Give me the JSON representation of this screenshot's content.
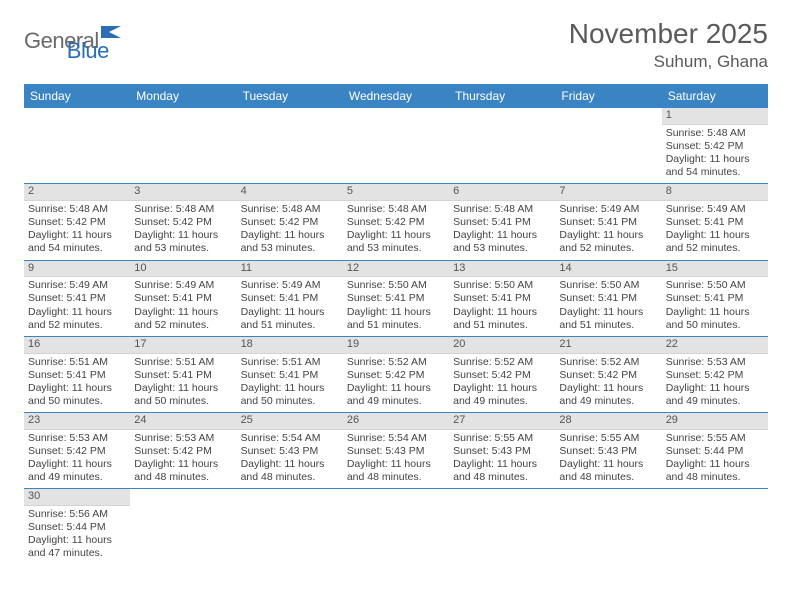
{
  "logo": {
    "text1": "General",
    "text2": "Blue"
  },
  "title": "November 2025",
  "location": "Suhum, Ghana",
  "colors": {
    "header_bg": "#3b84c4",
    "header_text": "#ffffff",
    "daynum_bg": "#e3e3e3",
    "week_border": "#3b84c4",
    "title_color": "#5a5a5a",
    "logo_gray": "#6a6a6a",
    "logo_blue": "#2a6fb5"
  },
  "weekdays": [
    "Sunday",
    "Monday",
    "Tuesday",
    "Wednesday",
    "Thursday",
    "Friday",
    "Saturday"
  ],
  "weeks": [
    [
      null,
      null,
      null,
      null,
      null,
      null,
      {
        "d": "1",
        "sr": "Sunrise: 5:48 AM",
        "ss": "Sunset: 5:42 PM",
        "dl1": "Daylight: 11 hours",
        "dl2": "and 54 minutes."
      }
    ],
    [
      {
        "d": "2",
        "sr": "Sunrise: 5:48 AM",
        "ss": "Sunset: 5:42 PM",
        "dl1": "Daylight: 11 hours",
        "dl2": "and 54 minutes."
      },
      {
        "d": "3",
        "sr": "Sunrise: 5:48 AM",
        "ss": "Sunset: 5:42 PM",
        "dl1": "Daylight: 11 hours",
        "dl2": "and 53 minutes."
      },
      {
        "d": "4",
        "sr": "Sunrise: 5:48 AM",
        "ss": "Sunset: 5:42 PM",
        "dl1": "Daylight: 11 hours",
        "dl2": "and 53 minutes."
      },
      {
        "d": "5",
        "sr": "Sunrise: 5:48 AM",
        "ss": "Sunset: 5:42 PM",
        "dl1": "Daylight: 11 hours",
        "dl2": "and 53 minutes."
      },
      {
        "d": "6",
        "sr": "Sunrise: 5:48 AM",
        "ss": "Sunset: 5:41 PM",
        "dl1": "Daylight: 11 hours",
        "dl2": "and 53 minutes."
      },
      {
        "d": "7",
        "sr": "Sunrise: 5:49 AM",
        "ss": "Sunset: 5:41 PM",
        "dl1": "Daylight: 11 hours",
        "dl2": "and 52 minutes."
      },
      {
        "d": "8",
        "sr": "Sunrise: 5:49 AM",
        "ss": "Sunset: 5:41 PM",
        "dl1": "Daylight: 11 hours",
        "dl2": "and 52 minutes."
      }
    ],
    [
      {
        "d": "9",
        "sr": "Sunrise: 5:49 AM",
        "ss": "Sunset: 5:41 PM",
        "dl1": "Daylight: 11 hours",
        "dl2": "and 52 minutes."
      },
      {
        "d": "10",
        "sr": "Sunrise: 5:49 AM",
        "ss": "Sunset: 5:41 PM",
        "dl1": "Daylight: 11 hours",
        "dl2": "and 52 minutes."
      },
      {
        "d": "11",
        "sr": "Sunrise: 5:49 AM",
        "ss": "Sunset: 5:41 PM",
        "dl1": "Daylight: 11 hours",
        "dl2": "and 51 minutes."
      },
      {
        "d": "12",
        "sr": "Sunrise: 5:50 AM",
        "ss": "Sunset: 5:41 PM",
        "dl1": "Daylight: 11 hours",
        "dl2": "and 51 minutes."
      },
      {
        "d": "13",
        "sr": "Sunrise: 5:50 AM",
        "ss": "Sunset: 5:41 PM",
        "dl1": "Daylight: 11 hours",
        "dl2": "and 51 minutes."
      },
      {
        "d": "14",
        "sr": "Sunrise: 5:50 AM",
        "ss": "Sunset: 5:41 PM",
        "dl1": "Daylight: 11 hours",
        "dl2": "and 51 minutes."
      },
      {
        "d": "15",
        "sr": "Sunrise: 5:50 AM",
        "ss": "Sunset: 5:41 PM",
        "dl1": "Daylight: 11 hours",
        "dl2": "and 50 minutes."
      }
    ],
    [
      {
        "d": "16",
        "sr": "Sunrise: 5:51 AM",
        "ss": "Sunset: 5:41 PM",
        "dl1": "Daylight: 11 hours",
        "dl2": "and 50 minutes."
      },
      {
        "d": "17",
        "sr": "Sunrise: 5:51 AM",
        "ss": "Sunset: 5:41 PM",
        "dl1": "Daylight: 11 hours",
        "dl2": "and 50 minutes."
      },
      {
        "d": "18",
        "sr": "Sunrise: 5:51 AM",
        "ss": "Sunset: 5:41 PM",
        "dl1": "Daylight: 11 hours",
        "dl2": "and 50 minutes."
      },
      {
        "d": "19",
        "sr": "Sunrise: 5:52 AM",
        "ss": "Sunset: 5:42 PM",
        "dl1": "Daylight: 11 hours",
        "dl2": "and 49 minutes."
      },
      {
        "d": "20",
        "sr": "Sunrise: 5:52 AM",
        "ss": "Sunset: 5:42 PM",
        "dl1": "Daylight: 11 hours",
        "dl2": "and 49 minutes."
      },
      {
        "d": "21",
        "sr": "Sunrise: 5:52 AM",
        "ss": "Sunset: 5:42 PM",
        "dl1": "Daylight: 11 hours",
        "dl2": "and 49 minutes."
      },
      {
        "d": "22",
        "sr": "Sunrise: 5:53 AM",
        "ss": "Sunset: 5:42 PM",
        "dl1": "Daylight: 11 hours",
        "dl2": "and 49 minutes."
      }
    ],
    [
      {
        "d": "23",
        "sr": "Sunrise: 5:53 AM",
        "ss": "Sunset: 5:42 PM",
        "dl1": "Daylight: 11 hours",
        "dl2": "and 49 minutes."
      },
      {
        "d": "24",
        "sr": "Sunrise: 5:53 AM",
        "ss": "Sunset: 5:42 PM",
        "dl1": "Daylight: 11 hours",
        "dl2": "and 48 minutes."
      },
      {
        "d": "25",
        "sr": "Sunrise: 5:54 AM",
        "ss": "Sunset: 5:43 PM",
        "dl1": "Daylight: 11 hours",
        "dl2": "and 48 minutes."
      },
      {
        "d": "26",
        "sr": "Sunrise: 5:54 AM",
        "ss": "Sunset: 5:43 PM",
        "dl1": "Daylight: 11 hours",
        "dl2": "and 48 minutes."
      },
      {
        "d": "27",
        "sr": "Sunrise: 5:55 AM",
        "ss": "Sunset: 5:43 PM",
        "dl1": "Daylight: 11 hours",
        "dl2": "and 48 minutes."
      },
      {
        "d": "28",
        "sr": "Sunrise: 5:55 AM",
        "ss": "Sunset: 5:43 PM",
        "dl1": "Daylight: 11 hours",
        "dl2": "and 48 minutes."
      },
      {
        "d": "29",
        "sr": "Sunrise: 5:55 AM",
        "ss": "Sunset: 5:44 PM",
        "dl1": "Daylight: 11 hours",
        "dl2": "and 48 minutes."
      }
    ],
    [
      {
        "d": "30",
        "sr": "Sunrise: 5:56 AM",
        "ss": "Sunset: 5:44 PM",
        "dl1": "Daylight: 11 hours",
        "dl2": "and 47 minutes."
      },
      null,
      null,
      null,
      null,
      null,
      null
    ]
  ]
}
